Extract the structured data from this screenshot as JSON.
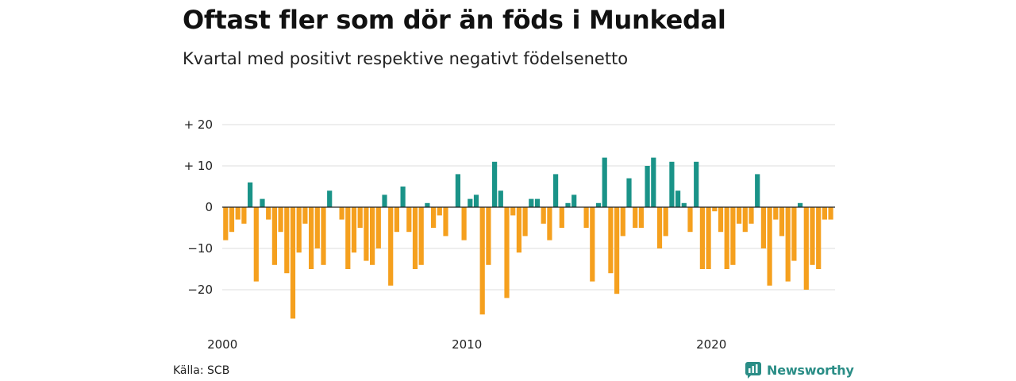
{
  "header": {
    "title": "Oftast fler som dör än föds i Munkedal",
    "subtitle": "Kvartal med positivt respektive negativt födelsenetto"
  },
  "footer": {
    "source": "Källa: SCB",
    "brand": "Newsworthy"
  },
  "colors": {
    "positive": "#1a9388",
    "negative": "#f5a01e",
    "grid": "#dddddd",
    "brand": "#2a8d86"
  },
  "chart_data": {
    "type": "bar",
    "x_start": "2000 Q1",
    "x_tick_labels": [
      "2000",
      "2010",
      "2020"
    ],
    "y_tick_labels": [
      "+ 20",
      "+ 10",
      "0",
      "−10",
      "−20"
    ],
    "y_ticks": [
      20,
      10,
      0,
      -10,
      -20
    ],
    "ylim": [
      -28,
      22
    ],
    "grid": true,
    "values": [
      -8,
      -6,
      -3,
      -4,
      6,
      -18,
      2,
      -3,
      -14,
      -6,
      -16,
      -27,
      -11,
      -4,
      -15,
      -10,
      -14,
      4,
      0,
      -3,
      -15,
      -11,
      -5,
      -13,
      -14,
      -10,
      3,
      -19,
      -6,
      5,
      -6,
      -15,
      -14,
      1,
      -5,
      -2,
      -7,
      0,
      8,
      -8,
      2,
      3,
      -26,
      -14,
      11,
      4,
      -22,
      -2,
      -11,
      -7,
      2,
      2,
      -4,
      -8,
      8,
      -5,
      1,
      3,
      0,
      -5,
      -18,
      1,
      12,
      -16,
      -21,
      -7,
      7,
      -5,
      -5,
      10,
      12,
      -10,
      -7,
      11,
      4,
      1,
      -6,
      11,
      -15,
      -15,
      -1,
      -6,
      -15,
      -14,
      -4,
      -6,
      -4,
      8,
      -10,
      -19,
      -3,
      -7,
      -18,
      -13,
      1,
      -20,
      -14,
      -15,
      -3,
      -3
    ]
  }
}
